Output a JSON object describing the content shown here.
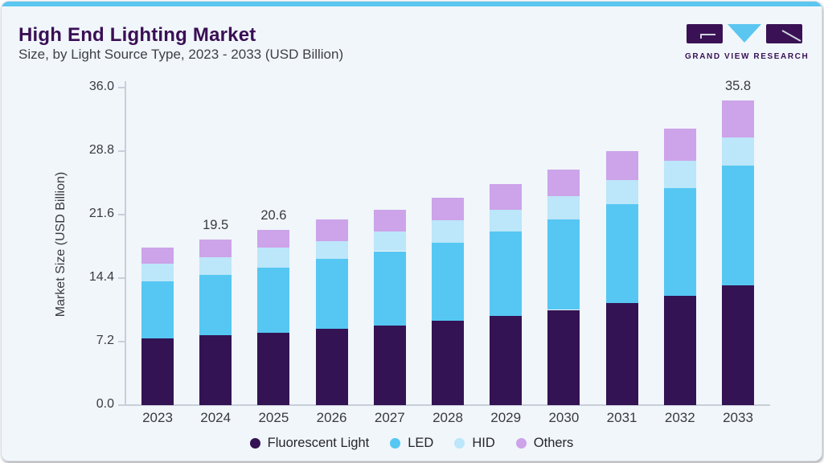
{
  "header": {
    "title": "High End Lighting Market",
    "subtitle": "Size, by Light Source Type, 2023 - 2033 (USD Billion)"
  },
  "logo": {
    "text": "GRAND VIEW RESEARCH"
  },
  "colors": {
    "accent_cyan": "#5BC6F0",
    "card_background": "#F0F6FA",
    "title_purple": "#3A0F55",
    "axis_gray": "#C9CFD8",
    "text_gray": "#3A3A42"
  },
  "chart_data": {
    "type": "bar",
    "stacked": true,
    "title": "High End Lighting Market",
    "subtitle": "Size, by Light Source Type, 2023 - 2033 (USD Billion)",
    "xlabel": "",
    "ylabel": "Market Size (USD Billion)",
    "ylim": [
      0,
      36
    ],
    "yticks": [
      "0.0",
      "7.2",
      "14.4",
      "21.6",
      "28.8",
      "36.0"
    ],
    "grid": false,
    "legend_position": "bottom",
    "categories": [
      "2023",
      "2024",
      "2025",
      "2026",
      "2027",
      "2028",
      "2029",
      "2030",
      "2031",
      "2032",
      "2033"
    ],
    "series": [
      {
        "name": "Fluorescent Light",
        "color": "#331353",
        "values": [
          7.8,
          8.2,
          8.5,
          9.0,
          9.4,
          9.9,
          10.5,
          11.2,
          12.0,
          12.9,
          14.1
        ]
      },
      {
        "name": "LED",
        "color": "#56C7F3",
        "values": [
          6.8,
          7.1,
          7.7,
          8.2,
          8.7,
          9.2,
          9.9,
          10.6,
          11.6,
          12.6,
          14.1
        ]
      },
      {
        "name": "HID",
        "color": "#BCE6F9",
        "values": [
          2.0,
          2.1,
          2.3,
          2.1,
          2.3,
          2.6,
          2.6,
          2.8,
          2.9,
          3.2,
          3.3
        ]
      },
      {
        "name": "Others",
        "color": "#CDA3E9",
        "values": [
          1.9,
          2.1,
          2.1,
          2.5,
          2.6,
          2.7,
          3.0,
          3.1,
          3.4,
          3.8,
          4.3
        ]
      }
    ],
    "total_labels": {
      "2024": "19.5",
      "2025": "20.6",
      "2033": "35.8"
    }
  }
}
